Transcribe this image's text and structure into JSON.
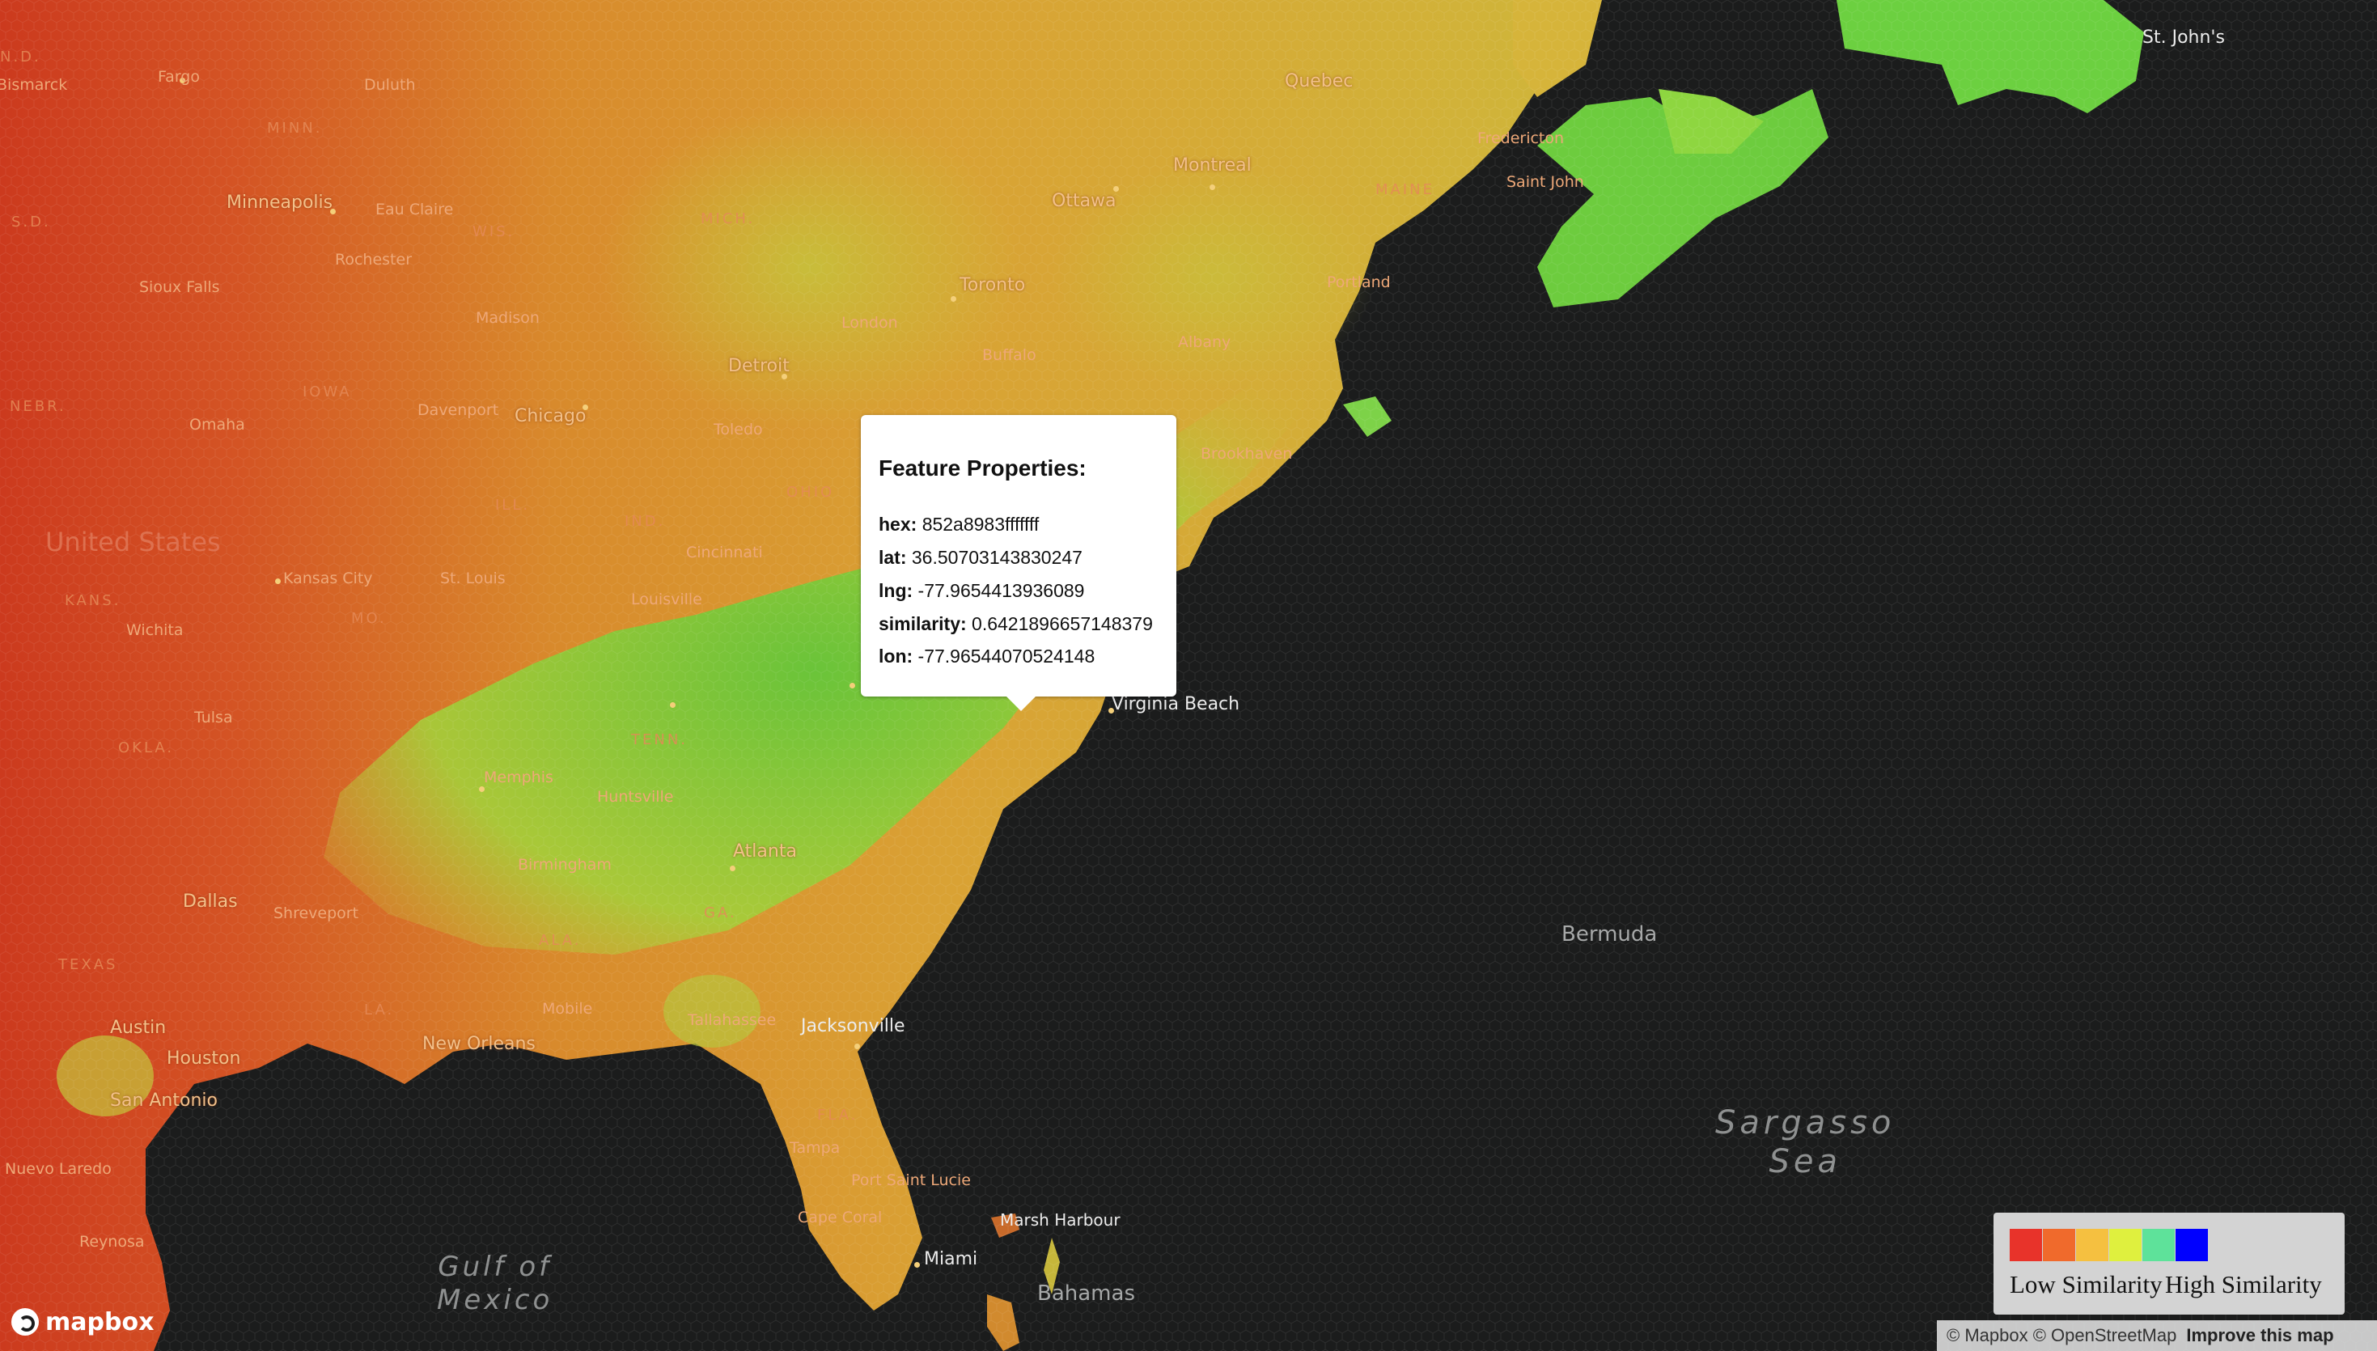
{
  "map": {
    "labels": {
      "places_light": [
        {
          "text": "St. John's",
          "cls": "city-w"
        },
        {
          "text": "Virginia Beach",
          "cls": "city-w"
        },
        {
          "text": "Miami",
          "cls": "city-w"
        },
        {
          "text": "Jacksonville",
          "cls": "city-w"
        },
        {
          "text": "Marsh Harbour",
          "cls": "city-w"
        },
        {
          "text": "Bermuda",
          "cls": "water-lbl"
        },
        {
          "text": "Bahamas",
          "cls": "water-lbl"
        }
      ],
      "sea": [
        "Sargasso",
        "Sea"
      ],
      "gulf": [
        "Gulf of",
        "Mexico"
      ],
      "country": "United States",
      "cities": [
        "Fargo",
        "Duluth",
        "Minneapolis",
        "Eau Claire",
        "Rochester",
        "Sioux Falls",
        "Madison",
        "Omaha",
        "Davenport",
        "Chicago",
        "Detroit",
        "Toledo",
        "Toronto",
        "London",
        "Buffalo",
        "Ottawa",
        "Montreal",
        "Quebec",
        "Fredericton",
        "Saint John",
        "Portland",
        "Albany",
        "Brookhaven",
        "Kansas City",
        "St. Louis",
        "Louisville",
        "Cincinnati",
        "Wichita",
        "Tulsa",
        "Memphis",
        "Huntsville",
        "Atlanta",
        "Birmingham",
        "Dallas",
        "Shreveport",
        "Austin",
        "Houston",
        "San Antonio",
        "New Orleans",
        "Mobile",
        "Tallahassee",
        "Tampa",
        "Port Saint Lucie",
        "Cape Coral",
        "Nuevo Laredo",
        "Reynosa",
        "Bismarck"
      ],
      "states": [
        "N.D.",
        "S.D.",
        "MINN.",
        "WIS.",
        "IOWA",
        "NEBR.",
        "KANS.",
        "MO.",
        "ILL.",
        "IND.",
        "OHIO",
        "MICH.",
        "OKLA.",
        "TEXAS",
        "LA.",
        "FLA.",
        "MAINE",
        "TENN.",
        "ALA.",
        "GA."
      ]
    }
  },
  "popup": {
    "title": "Feature Properties:",
    "rows": [
      {
        "key": "hex:",
        "value": "852a8983fffffff"
      },
      {
        "key": "lat:",
        "value": "36.50703143830247"
      },
      {
        "key": "lng:",
        "value": "-77.9654413936089"
      },
      {
        "key": "similarity:",
        "value": "0.6421896657148379"
      },
      {
        "key": "lon:",
        "value": "-77.96544070524148"
      }
    ]
  },
  "legend": {
    "colors": [
      "#e8332a",
      "#f06a2c",
      "#f5c040",
      "#dff03e",
      "#5ee29a",
      "#0000ff"
    ],
    "low_label": "Low Similarity",
    "high_label": "High Similarity"
  },
  "logo": {
    "text": "mapbox",
    "icon": "mapbox-logo-icon"
  },
  "attribution": {
    "mapbox": "© Mapbox",
    "osm": "© OpenStreetMap",
    "improve": "Improve this map"
  }
}
